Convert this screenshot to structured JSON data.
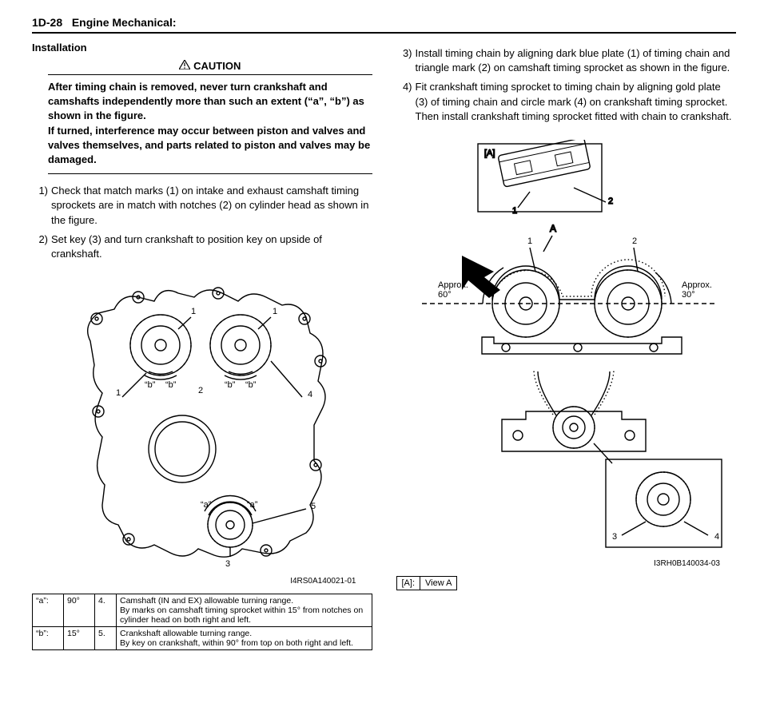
{
  "header": {
    "page": "1D-28",
    "title": "Engine Mechanical:"
  },
  "left": {
    "section": "Installation",
    "caution_label": "CAUTION",
    "caution_text": "After timing chain is removed, never turn crankshaft and camshafts independently more than such an extent (“a”, “b”) as shown in the figure.\nIf turned, interference may occur between piston and valves and valves themselves, and parts related to piston and valves may be damaged.",
    "steps": [
      {
        "n": "1)",
        "t": "Check that match marks (1) on intake and exhaust camshaft timing sprockets are in match with notches (2) on cylinder head as shown in the figure."
      },
      {
        "n": "2)",
        "t": "Set key (3) and turn crankshaft to position key on upside of crankshaft."
      }
    ],
    "fig_id": "I4RS0A140021-01",
    "fig_labels": {
      "a": "“a”",
      "b": "“b”",
      "l1": "1",
      "l2": "2",
      "l3": "3",
      "l4": "4",
      "l5": "5"
    },
    "notes": [
      {
        "k": "“a”:",
        "v": "90°",
        "n": "4.",
        "d": "Camshaft (IN and EX) allowable turning range.\nBy marks on camshaft timing sprocket within 15° from notches on cylinder head on both right and left."
      },
      {
        "k": "“b”:",
        "v": "15°",
        "n": "5.",
        "d": "Crankshaft allowable turning range.\nBy key on crankshaft, within 90° from top on both right and left."
      }
    ]
  },
  "right": {
    "steps": [
      {
        "n": "3)",
        "t": "Install timing chain by aligning dark blue plate (1) of timing chain and triangle mark (2) on camshaft timing sprocket as shown in the figure."
      },
      {
        "n": "4)",
        "t": "Fit crankshaft timing sprocket to timing chain by aligning gold plate (3) of timing chain and circle mark (4) on crankshaft timing sprocket. Then install crankshaft timing sprocket fitted with chain to crankshaft."
      }
    ],
    "fig_id": "I3RH0B140034-03",
    "fig_labels": {
      "A": "A",
      "boxA": "[A]",
      "l1": "1",
      "l2": "2",
      "l3": "3",
      "l4": "4",
      "approx60": "Approx.\n60°",
      "approx30": "Approx.\n30°"
    },
    "legend": {
      "k": "[A]:",
      "v": "View A"
    }
  },
  "style": {
    "stroke": "#000000",
    "bg": "#ffffff",
    "font_family": "Arial",
    "base_fontsize": 13
  }
}
